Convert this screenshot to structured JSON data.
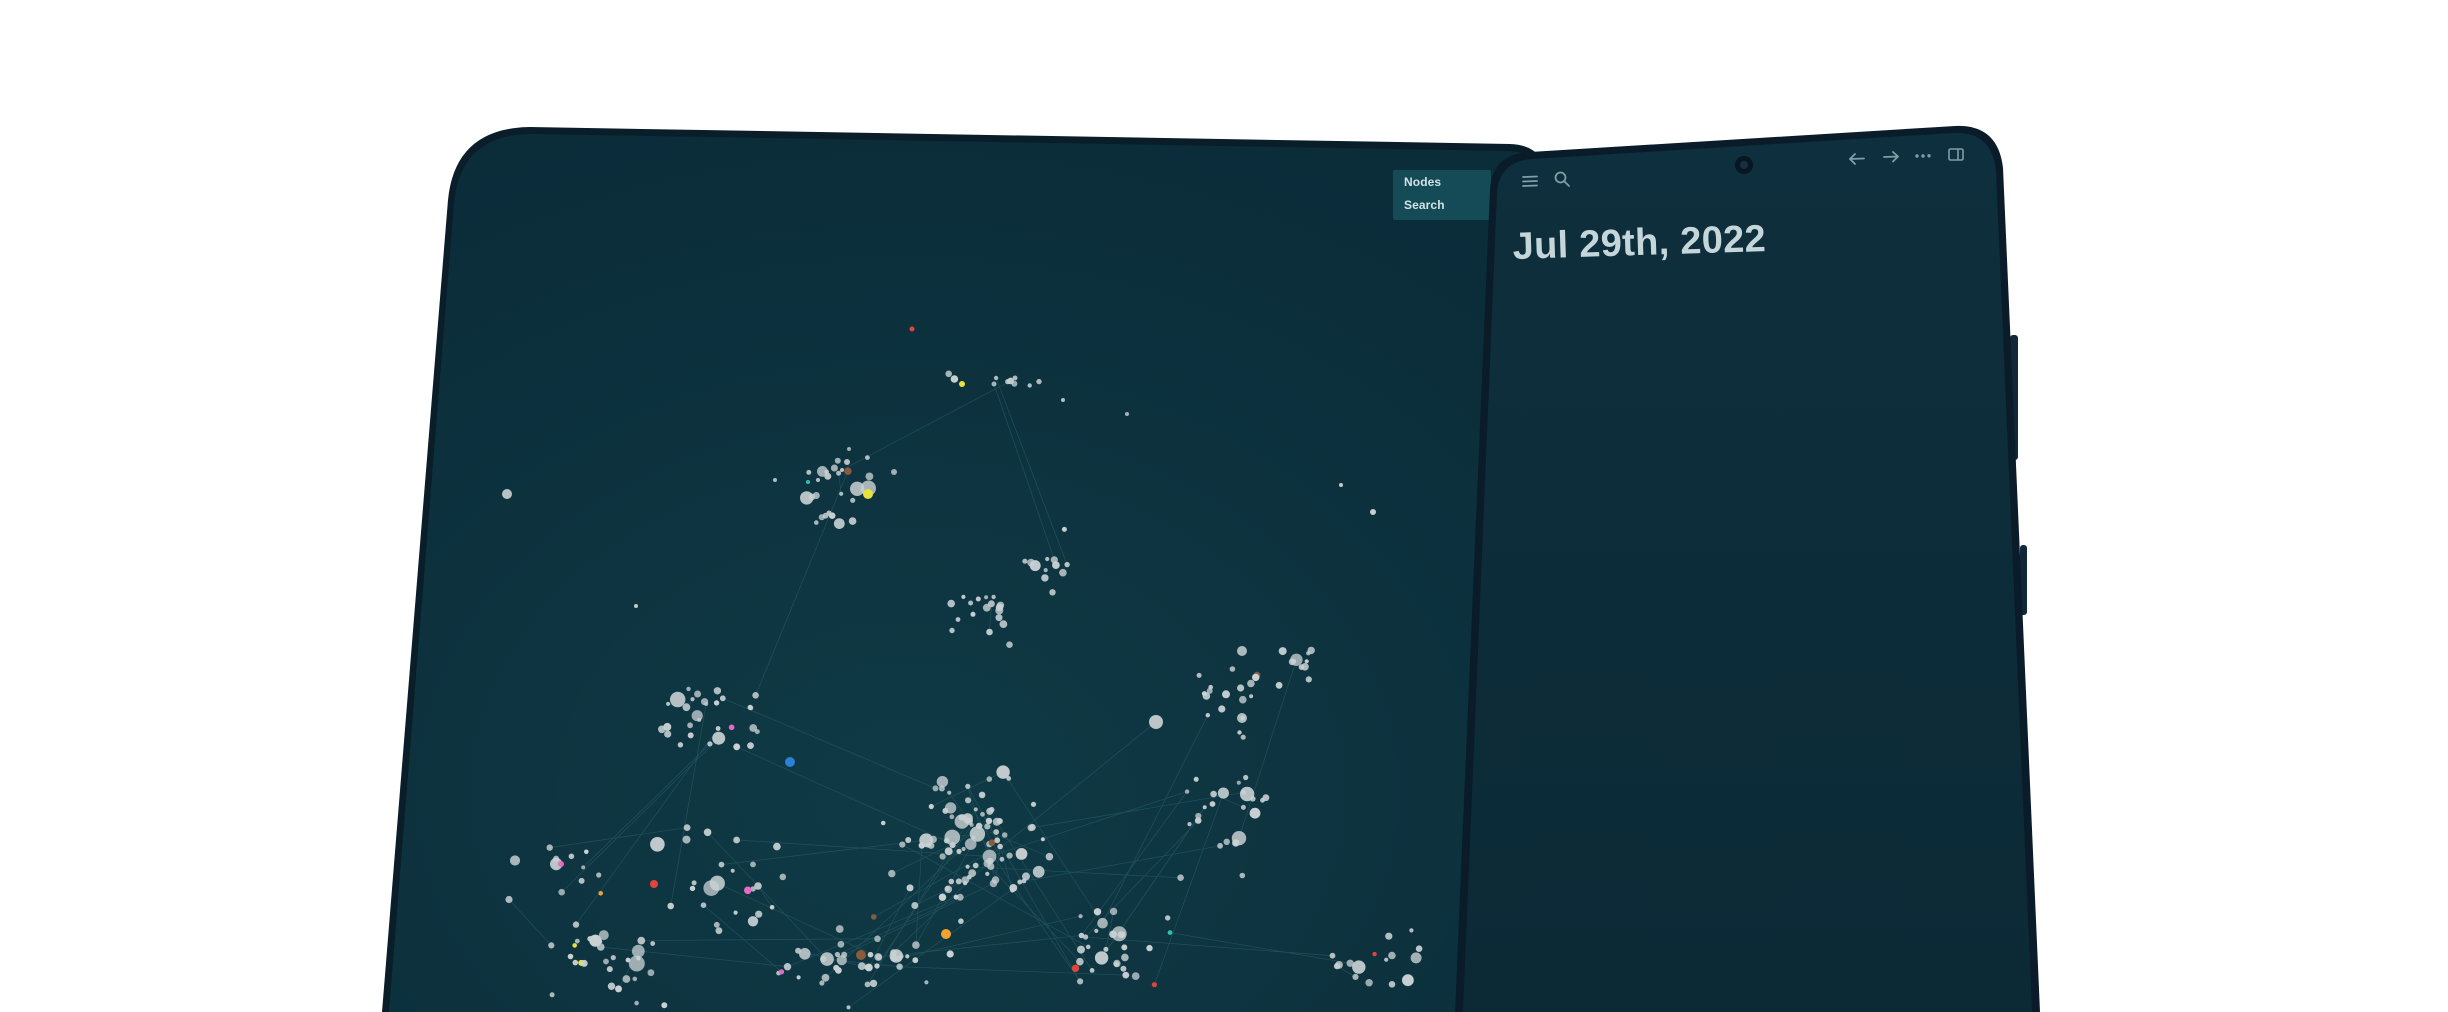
{
  "graph_view": {
    "menu": {
      "nodes_label": "Nodes",
      "search_label": "Search"
    },
    "background_color": "#0d2f3c",
    "node_color": "#c9d1d3",
    "accent_node_colors": [
      "#e8e23a",
      "#2b7fd6",
      "#e2443a",
      "#e86ac7",
      "#f2a32f",
      "#8a5a3d",
      "#2fc1a6"
    ]
  },
  "journal": {
    "date_title": "Jul 29th, 2022",
    "toolbar_icons": [
      "menu-icon",
      "search-icon",
      "back-arrow-icon",
      "forward-arrow-icon",
      "more-icon",
      "sidebar-toggle-icon"
    ],
    "background_color": "#0c2a36"
  }
}
